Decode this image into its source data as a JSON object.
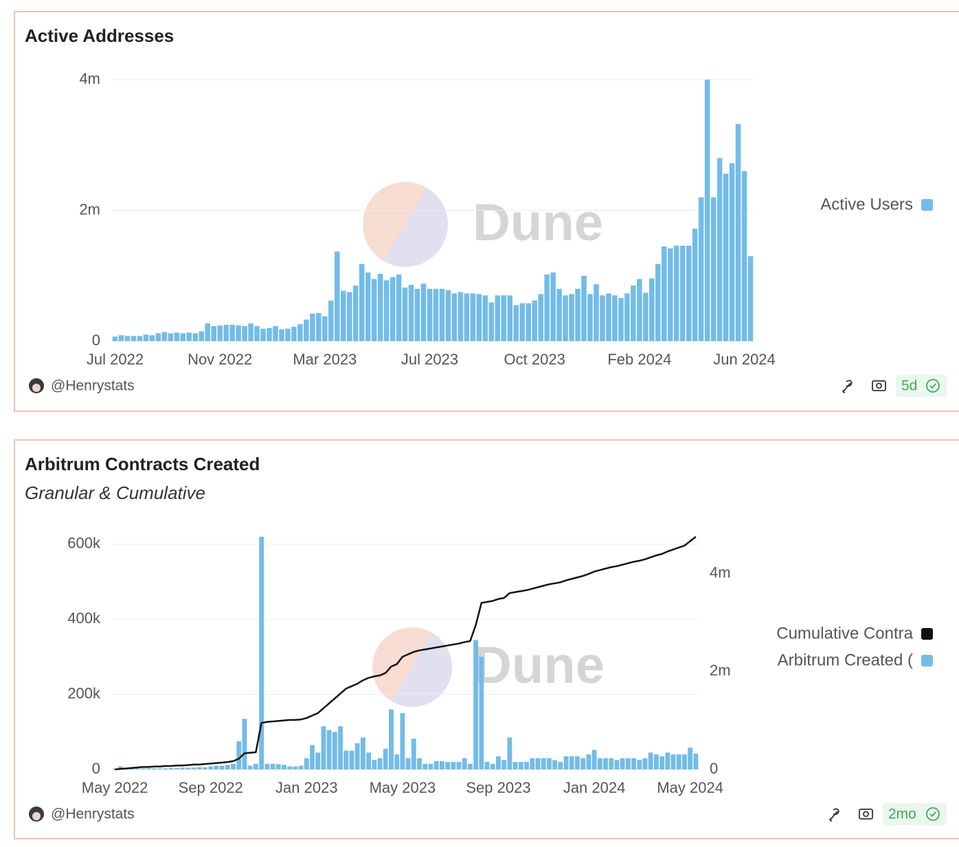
{
  "chart_data": [
    {
      "type": "bar",
      "title": "Active Addresses",
      "watermark": "Dune",
      "author": "@Henrystats",
      "updated": "5d",
      "categories": [
        "Jul 2022",
        null,
        null,
        null,
        null,
        null,
        null,
        null,
        null,
        null,
        null,
        null,
        null,
        null,
        null,
        null,
        null,
        "Nov 2022",
        null,
        null,
        null,
        null,
        null,
        null,
        null,
        null,
        null,
        null,
        null,
        null,
        null,
        null,
        null,
        null,
        "Mar 2023",
        null,
        null,
        null,
        null,
        null,
        null,
        null,
        null,
        null,
        null,
        null,
        null,
        null,
        null,
        null,
        null,
        "Jul 2023",
        null,
        null,
        null,
        null,
        null,
        null,
        null,
        null,
        null,
        null,
        null,
        null,
        null,
        null,
        null,
        null,
        "Oct 2023",
        null,
        null,
        null,
        null,
        null,
        null,
        null,
        null,
        null,
        null,
        null,
        null,
        null,
        null,
        null,
        null,
        "Feb 2024",
        null,
        null,
        null,
        null,
        null,
        null,
        null,
        null,
        null,
        null,
        null,
        null,
        null,
        null,
        null,
        null,
        "Jun 2024",
        null
      ],
      "series": [
        {
          "name": "Active Users",
          "color": "#72bce9",
          "values": [
            70000,
            90000,
            80000,
            80000,
            80000,
            100000,
            90000,
            120000,
            140000,
            120000,
            130000,
            120000,
            130000,
            120000,
            150000,
            270000,
            230000,
            240000,
            250000,
            250000,
            240000,
            230000,
            270000,
            230000,
            190000,
            200000,
            230000,
            180000,
            190000,
            220000,
            260000,
            330000,
            420000,
            430000,
            380000,
            620000,
            1370000,
            770000,
            750000,
            850000,
            1180000,
            1050000,
            950000,
            1030000,
            930000,
            980000,
            1020000,
            820000,
            860000,
            800000,
            880000,
            800000,
            800000,
            800000,
            780000,
            730000,
            750000,
            730000,
            730000,
            720000,
            700000,
            590000,
            700000,
            700000,
            700000,
            550000,
            580000,
            580000,
            620000,
            720000,
            1020000,
            1050000,
            800000,
            700000,
            720000,
            800000,
            1000000,
            720000,
            870000,
            700000,
            730000,
            700000,
            660000,
            730000,
            850000,
            950000,
            740000,
            960000,
            1180000,
            1450000,
            1420000,
            1460000,
            1460000,
            1460000,
            1720000,
            2200000,
            4000000,
            2200000,
            2800000,
            2560000,
            2720000,
            3320000,
            2600000,
            1300000
          ]
        }
      ],
      "ylim": [
        0,
        4000000
      ],
      "yticks": [
        0,
        {
          "value": 2000000,
          "label": "2m"
        },
        {
          "value": 4000000,
          "label": "4m"
        }
      ],
      "grid": true,
      "legend": "right"
    },
    {
      "type": "combo",
      "title": "Arbitrum Contracts Created",
      "subtitle": "Granular & Cumulative",
      "watermark": "Dune",
      "author": "@Henrystats",
      "updated": "2mo",
      "categories": [
        "May 2022",
        null,
        null,
        null,
        null,
        null,
        null,
        null,
        null,
        null,
        null,
        null,
        null,
        null,
        null,
        null,
        null,
        "Sep 2022",
        null,
        null,
        null,
        null,
        null,
        null,
        null,
        null,
        null,
        null,
        null,
        null,
        null,
        null,
        null,
        null,
        "Jan 2023",
        null,
        null,
        null,
        null,
        null,
        null,
        null,
        null,
        null,
        null,
        null,
        null,
        null,
        null,
        null,
        null,
        "May 2023",
        null,
        null,
        null,
        null,
        null,
        null,
        null,
        null,
        null,
        null,
        null,
        null,
        null,
        null,
        null,
        null,
        "Sep 2023",
        null,
        null,
        null,
        null,
        null,
        null,
        null,
        null,
        null,
        null,
        null,
        null,
        null,
        null,
        null,
        null,
        "Jan 2024",
        null,
        null,
        null,
        null,
        null,
        null,
        null,
        null,
        null,
        null,
        null,
        null,
        null,
        null,
        null,
        null,
        "May 2024",
        null
      ],
      "series": [
        {
          "name": "Cumulative Contra",
          "type": "line",
          "axis": "y2",
          "color": "#111111",
          "values": [
            0,
            10000,
            20000,
            30000,
            40000,
            50000,
            50000,
            60000,
            60000,
            70000,
            70000,
            80000,
            80000,
            90000,
            100000,
            100000,
            110000,
            120000,
            130000,
            140000,
            150000,
            170000,
            220000,
            330000,
            340000,
            350000,
            950000,
            970000,
            980000,
            990000,
            1000000,
            1010000,
            1010000,
            1020000,
            1050000,
            1100000,
            1150000,
            1250000,
            1350000,
            1450000,
            1550000,
            1650000,
            1700000,
            1750000,
            1820000,
            1870000,
            1900000,
            1920000,
            1970000,
            2100000,
            2150000,
            2300000,
            2350000,
            2400000,
            2430000,
            2450000,
            2470000,
            2490000,
            2510000,
            2530000,
            2550000,
            2570000,
            2600000,
            2620000,
            2950000,
            3400000,
            3420000,
            3440000,
            3480000,
            3500000,
            3600000,
            3620000,
            3640000,
            3660000,
            3690000,
            3720000,
            3750000,
            3780000,
            3800000,
            3820000,
            3860000,
            3890000,
            3920000,
            3950000,
            3990000,
            4040000,
            4070000,
            4100000,
            4130000,
            4150000,
            4180000,
            4210000,
            4240000,
            4260000,
            4290000,
            4330000,
            4370000,
            4400000,
            4450000,
            4490000,
            4530000,
            4570000,
            4660000,
            4750000
          ]
        },
        {
          "name": "Arbitrum Created (",
          "type": "bar",
          "color": "#72bce9",
          "values": [
            2000,
            8000,
            2000,
            3000,
            3000,
            3000,
            3000,
            3000,
            3000,
            3000,
            4000,
            4000,
            5000,
            5000,
            5000,
            6000,
            6000,
            8000,
            10000,
            10000,
            12000,
            15000,
            75000,
            135000,
            10000,
            15000,
            620000,
            15000,
            15000,
            14000,
            12000,
            8000,
            8000,
            10000,
            30000,
            65000,
            45000,
            115000,
            105000,
            100000,
            115000,
            50000,
            50000,
            70000,
            85000,
            45000,
            25000,
            30000,
            55000,
            160000,
            40000,
            150000,
            30000,
            82000,
            30000,
            15000,
            15000,
            22000,
            22000,
            20000,
            20000,
            20000,
            30000,
            15000,
            345000,
            300000,
            20000,
            15000,
            35000,
            25000,
            85000,
            20000,
            20000,
            20000,
            30000,
            30000,
            30000,
            30000,
            25000,
            20000,
            35000,
            35000,
            35000,
            30000,
            40000,
            52000,
            30000,
            30000,
            30000,
            25000,
            30000,
            30000,
            30000,
            25000,
            30000,
            45000,
            40000,
            35000,
            45000,
            40000,
            40000,
            40000,
            58000,
            42000
          ]
        }
      ],
      "ylim": [
        0,
        620000
      ],
      "yticks": [
        0,
        {
          "value": 200000,
          "label": "200k"
        },
        {
          "value": 400000,
          "label": "400k"
        },
        {
          "value": 600000,
          "label": "600k"
        }
      ],
      "y2lim": [
        0,
        4750000
      ],
      "y2ticks": [
        0,
        {
          "value": 2000000,
          "label": "2m"
        },
        {
          "value": 4000000,
          "label": "4m"
        }
      ],
      "grid": true,
      "legend": "right"
    }
  ]
}
